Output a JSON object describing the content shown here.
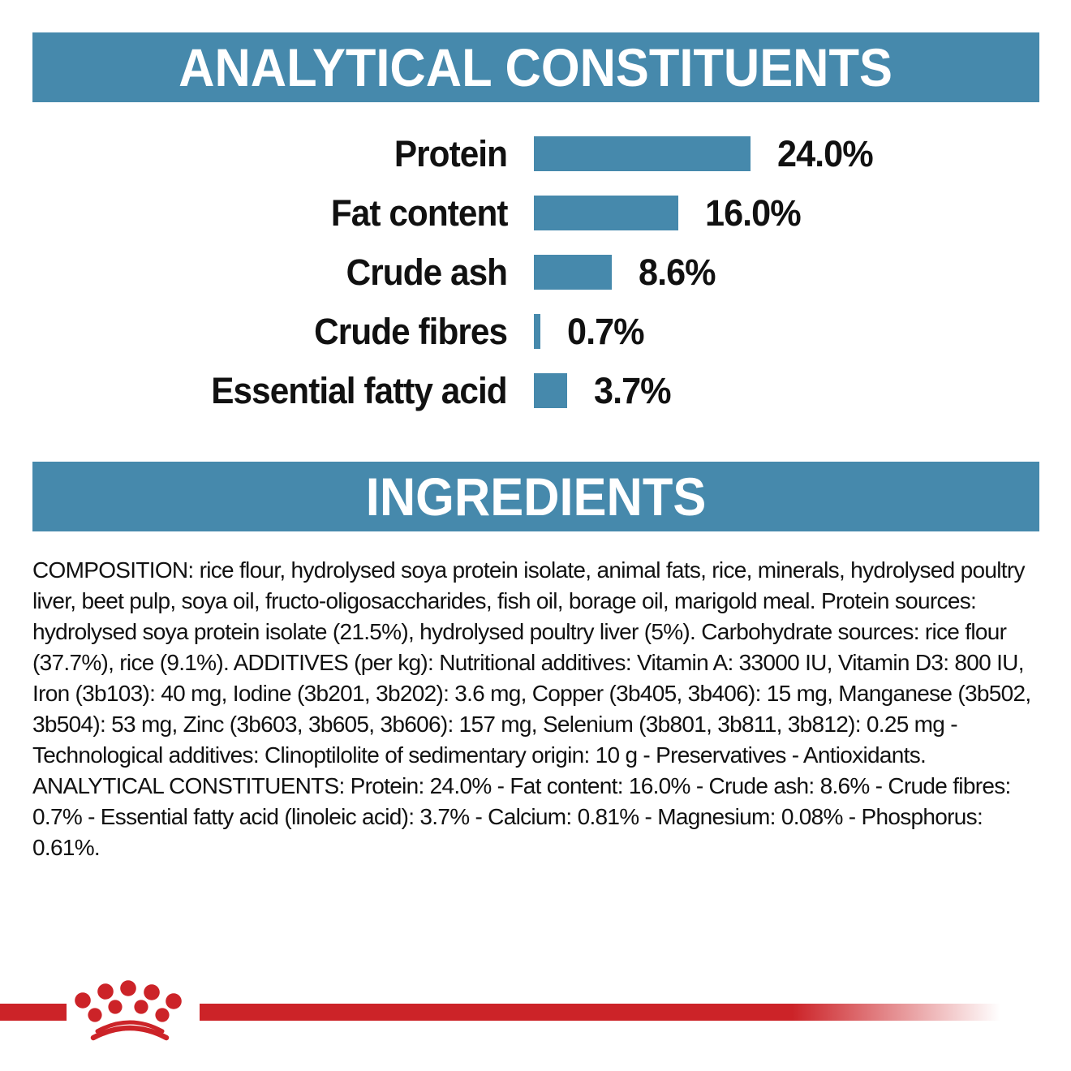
{
  "colors": {
    "banner_teal": "#4689ac",
    "bar_teal": "#4689ac",
    "brand_red": "#cc2328",
    "text_black": "#111111",
    "banner_text_white": "#ffffff"
  },
  "sections": {
    "analytical": {
      "title": "ANALYTICAL CONSTITUENTS"
    },
    "ingredients": {
      "title": "INGREDIENTS"
    }
  },
  "chart_data": {
    "type": "bar",
    "orientation": "horizontal",
    "categories": [
      "Protein",
      "Fat content",
      "Crude ash",
      "Crude fibres",
      "Essential fatty acid"
    ],
    "values": [
      24.0,
      16.0,
      8.6,
      0.7,
      3.7
    ],
    "value_labels": [
      "24.0%",
      "16.0%",
      "8.6%",
      "0.7%",
      "3.7%"
    ],
    "title": "ANALYTICAL CONSTITUENTS",
    "xlabel": "",
    "ylabel": "",
    "xlim": [
      0,
      24
    ],
    "grid": false,
    "legend": false,
    "bar_color": "#4689ac",
    "value_label_position": "right-of-bar"
  },
  "ingredients_text": "COMPOSITION: rice flour, hydrolysed soya protein isolate, animal fats, rice, minerals, hydrolysed poultry liver, beet pulp, soya oil, fructo-oligosaccharides, fish oil, borage oil, marigold meal. Protein sources: hydrolysed soya protein isolate (21.5%), hydrolysed poultry liver (5%). Carbohydrate sources: rice flour (37.7%), rice (9.1%). ADDITIVES (per kg): Nutritional additives: Vitamin A: 33000 IU, Vitamin D3: 800 IU, Iron (3b103): 40 mg, Iodine (3b201, 3b202): 3.6 mg, Copper (3b405, 3b406): 15 mg, Manganese (3b502, 3b504): 53 mg, Zinc (3b603, 3b605, 3b606): 157 mg, Selenium (3b801, 3b811, 3b812): 0.25 mg - Technological additives: Clinoptilolite of sedimentary origin: 10 g - Preservatives - Antioxidants. ANALYTICAL CONSTITUENTS: Protein: 24.0% - Fat content: 16.0% - Crude ash: 8.6% - Crude fibres: 0.7% - Essential fatty acid (linoleic acid): 3.7% - Calcium: 0.81% - Magnesium: 0.08% - Phosphorus: 0.61%.",
  "footer": {
    "logo_icon": "royal-canin-crown-icon"
  }
}
